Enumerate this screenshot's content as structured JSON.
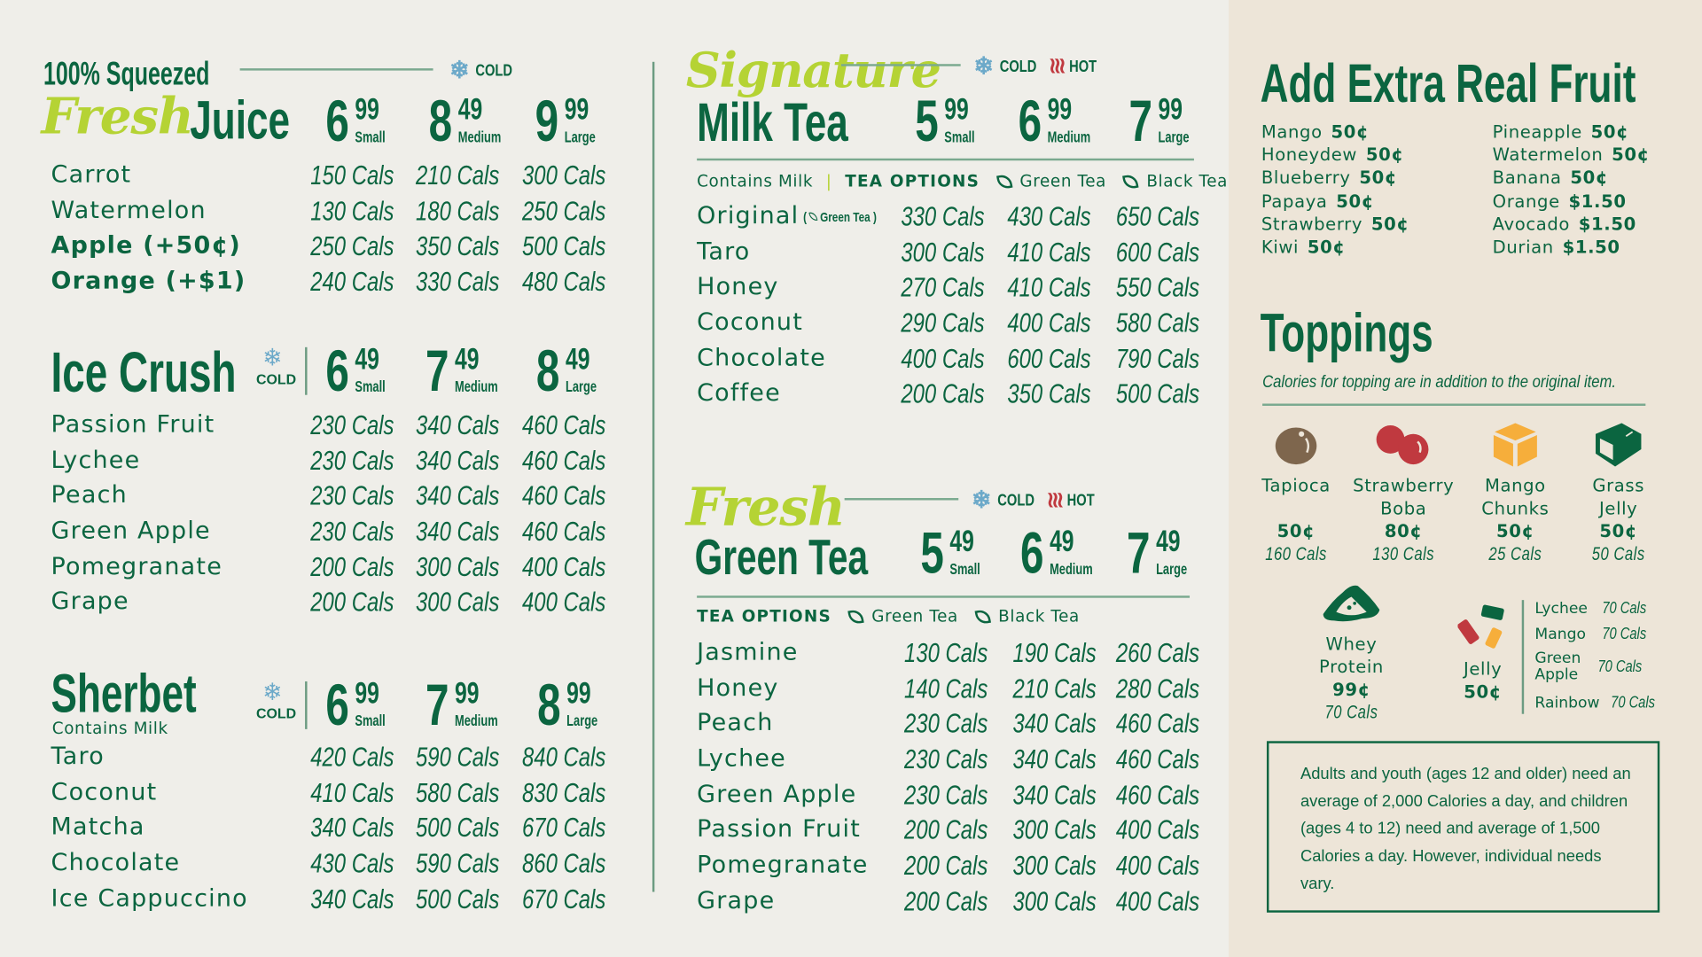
{
  "colors": {
    "green": "#0b6540",
    "lime": "#b5d334",
    "cold": "#6ca9c9",
    "hot": "#c0393f",
    "panel": "#ede5d8"
  },
  "juice": {
    "pre": "100% Squeezed",
    "script": "Fresh",
    "title": "Juice",
    "temps": [
      "COLD"
    ],
    "prices": [
      {
        "w": "6",
        "c": "99",
        "s": "Small"
      },
      {
        "w": "8",
        "c": "49",
        "s": "Medium"
      },
      {
        "w": "9",
        "c": "99",
        "s": "Large"
      }
    ],
    "rows": [
      {
        "name": "Carrot",
        "cals": [
          "150 Cals",
          "210 Cals",
          "300 Cals"
        ]
      },
      {
        "name": "Watermelon",
        "cals": [
          "130 Cals",
          "180 Cals",
          "250 Cals"
        ]
      },
      {
        "name": "Apple (+50¢)",
        "bold": true,
        "cals": [
          "250 Cals",
          "350 Cals",
          "500 Cals"
        ]
      },
      {
        "name": "Orange (+$1)",
        "bold": true,
        "cals": [
          "240 Cals",
          "330 Cals",
          "480 Cals"
        ]
      }
    ]
  },
  "icecrush": {
    "title": "Ice Crush",
    "temps": [
      "COLD"
    ],
    "prices": [
      {
        "w": "6",
        "c": "49",
        "s": "Small"
      },
      {
        "w": "7",
        "c": "49",
        "s": "Medium"
      },
      {
        "w": "8",
        "c": "49",
        "s": "Large"
      }
    ],
    "rows": [
      {
        "name": "Passion Fruit",
        "cals": [
          "230 Cals",
          "340 Cals",
          "460 Cals"
        ]
      },
      {
        "name": "Lychee",
        "cals": [
          "230 Cals",
          "340 Cals",
          "460 Cals"
        ]
      },
      {
        "name": "Peach",
        "cals": [
          "230 Cals",
          "340 Cals",
          "460 Cals"
        ]
      },
      {
        "name": "Green Apple",
        "cals": [
          "230 Cals",
          "340 Cals",
          "460 Cals"
        ]
      },
      {
        "name": "Pomegranate",
        "cals": [
          "200 Cals",
          "300 Cals",
          "400 Cals"
        ]
      },
      {
        "name": "Grape",
        "cals": [
          "200 Cals",
          "300 Cals",
          "400 Cals"
        ]
      }
    ]
  },
  "sherbet": {
    "title": "Sherbet",
    "sub": "Contains Milk",
    "temps": [
      "COLD"
    ],
    "prices": [
      {
        "w": "6",
        "c": "99",
        "s": "Small"
      },
      {
        "w": "7",
        "c": "99",
        "s": "Medium"
      },
      {
        "w": "8",
        "c": "99",
        "s": "Large"
      }
    ],
    "rows": [
      {
        "name": "Taro",
        "cals": [
          "420 Cals",
          "590 Cals",
          "840 Cals"
        ]
      },
      {
        "name": "Coconut",
        "cals": [
          "410 Cals",
          "580 Cals",
          "830 Cals"
        ]
      },
      {
        "name": "Matcha",
        "cals": [
          "340 Cals",
          "500 Cals",
          "670 Cals"
        ]
      },
      {
        "name": "Chocolate",
        "cals": [
          "430 Cals",
          "590 Cals",
          "860 Cals"
        ]
      },
      {
        "name": "Ice Cappuccino",
        "cals": [
          "340 Cals",
          "500 Cals",
          "670 Cals"
        ]
      }
    ]
  },
  "milktea": {
    "script": "Signature",
    "title": "Milk Tea",
    "temps": [
      "COLD",
      "HOT"
    ],
    "prices": [
      {
        "w": "5",
        "c": "99",
        "s": "Small"
      },
      {
        "w": "6",
        "c": "99",
        "s": "Medium"
      },
      {
        "w": "7",
        "c": "99",
        "s": "Large"
      }
    ],
    "contains": "Contains Milk",
    "options_label": "TEA OPTIONS",
    "options": [
      "Green Tea",
      "Black Tea"
    ],
    "rows": [
      {
        "name": "Original",
        "tag": "Green Tea",
        "cals": [
          "330 Cals",
          "430 Cals",
          "650 Cals"
        ]
      },
      {
        "name": "Taro",
        "cals": [
          "300 Cals",
          "410 Cals",
          "600 Cals"
        ]
      },
      {
        "name": "Honey",
        "cals": [
          "270 Cals",
          "410 Cals",
          "550 Cals"
        ]
      },
      {
        "name": "Coconut",
        "cals": [
          "290 Cals",
          "400 Cals",
          "580 Cals"
        ]
      },
      {
        "name": "Chocolate",
        "cals": [
          "400 Cals",
          "600 Cals",
          "790 Cals"
        ]
      },
      {
        "name": "Coffee",
        "cals": [
          "200 Cals",
          "350 Cals",
          "500 Cals"
        ]
      }
    ]
  },
  "greentea": {
    "script": "Fresh",
    "title": "Green Tea",
    "temps": [
      "COLD",
      "HOT"
    ],
    "prices": [
      {
        "w": "5",
        "c": "49",
        "s": "Small"
      },
      {
        "w": "6",
        "c": "49",
        "s": "Medium"
      },
      {
        "w": "7",
        "c": "49",
        "s": "Large"
      }
    ],
    "options_label": "TEA OPTIONS",
    "options": [
      "Green Tea",
      "Black Tea"
    ],
    "rows": [
      {
        "name": "Jasmine",
        "cals": [
          "130 Cals",
          "190 Cals",
          "260 Cals"
        ]
      },
      {
        "name": "Honey",
        "cals": [
          "140 Cals",
          "210 Cals",
          "280 Cals"
        ]
      },
      {
        "name": "Peach",
        "cals": [
          "230 Cals",
          "340 Cals",
          "460 Cals"
        ]
      },
      {
        "name": "Lychee",
        "cals": [
          "230 Cals",
          "340 Cals",
          "460 Cals"
        ]
      },
      {
        "name": "Green Apple",
        "cals": [
          "230 Cals",
          "340 Cals",
          "460 Cals"
        ]
      },
      {
        "name": "Passion Fruit",
        "cals": [
          "200 Cals",
          "300 Cals",
          "400 Cals"
        ]
      },
      {
        "name": "Pomegranate",
        "cals": [
          "200 Cals",
          "300 Cals",
          "400 Cals"
        ]
      },
      {
        "name": "Grape",
        "cals": [
          "200 Cals",
          "300 Cals",
          "400 Cals"
        ]
      }
    ]
  },
  "extra_fruit": {
    "title": "Add Extra Real Fruit",
    "col1": [
      {
        "name": "Mango",
        "price": "50¢"
      },
      {
        "name": "Honeydew",
        "price": "50¢"
      },
      {
        "name": "Blueberry",
        "price": "50¢"
      },
      {
        "name": "Papaya",
        "price": "50¢"
      },
      {
        "name": "Strawberry",
        "price": "50¢"
      },
      {
        "name": "Kiwi",
        "price": "50¢"
      }
    ],
    "col2": [
      {
        "name": "Pineapple",
        "price": "50¢"
      },
      {
        "name": "Watermelon",
        "price": "50¢"
      },
      {
        "name": "Banana",
        "price": "50¢"
      },
      {
        "name": "Orange",
        "price": "$1.50"
      },
      {
        "name": "Avocado",
        "price": "$1.50"
      },
      {
        "name": "Durian",
        "price": "$1.50"
      }
    ]
  },
  "toppings": {
    "title": "Toppings",
    "caption": "Calories for topping are in addition to the original item.",
    "items": [
      {
        "icon": "tapioca-icon",
        "l1": "Tapioca",
        "l2": "",
        "price": "50¢",
        "cals": "160 Cals"
      },
      {
        "icon": "strawberry-boba-icon",
        "l1": "Strawberry",
        "l2": "Boba",
        "price": "80¢",
        "cals": "130 Cals"
      },
      {
        "icon": "mango-chunks-icon",
        "l1": "Mango",
        "l2": "Chunks",
        "price": "50¢",
        "cals": "25 Cals"
      },
      {
        "icon": "grass-jelly-icon",
        "l1": "Grass",
        "l2": "Jelly",
        "price": "50¢",
        "cals": "50 Cals"
      }
    ],
    "whey": {
      "l1": "Whey",
      "l2": "Protein",
      "price": "99¢",
      "cals": "70 Cals"
    },
    "jelly": {
      "name": "Jelly",
      "price": "50¢",
      "flavors": [
        {
          "name": "Lychee",
          "cals": "70 Cals"
        },
        {
          "name": "Mango",
          "cals": "70 Cals"
        },
        {
          "name": "Green Apple",
          "cals": "70 Cals"
        },
        {
          "name": "Rainbow",
          "cals": "70 Cals"
        }
      ]
    }
  },
  "note": "Adults and youth (ages 12 and older) need an average of 2,000 Calories a day, and children (ages 4 to 12) need and average of 1,500 Calories a day. However, individual needs vary."
}
